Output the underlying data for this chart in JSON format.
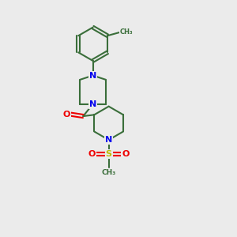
{
  "background_color": "#ebebeb",
  "bond_color": "#3a6e3a",
  "N_color": "#0000ee",
  "O_color": "#ee0000",
  "S_color": "#bbbb00",
  "line_width": 1.5,
  "figsize": [
    3.0,
    3.0
  ],
  "dpi": 100,
  "xlim": [
    0,
    10
  ],
  "ylim": [
    0,
    10
  ]
}
